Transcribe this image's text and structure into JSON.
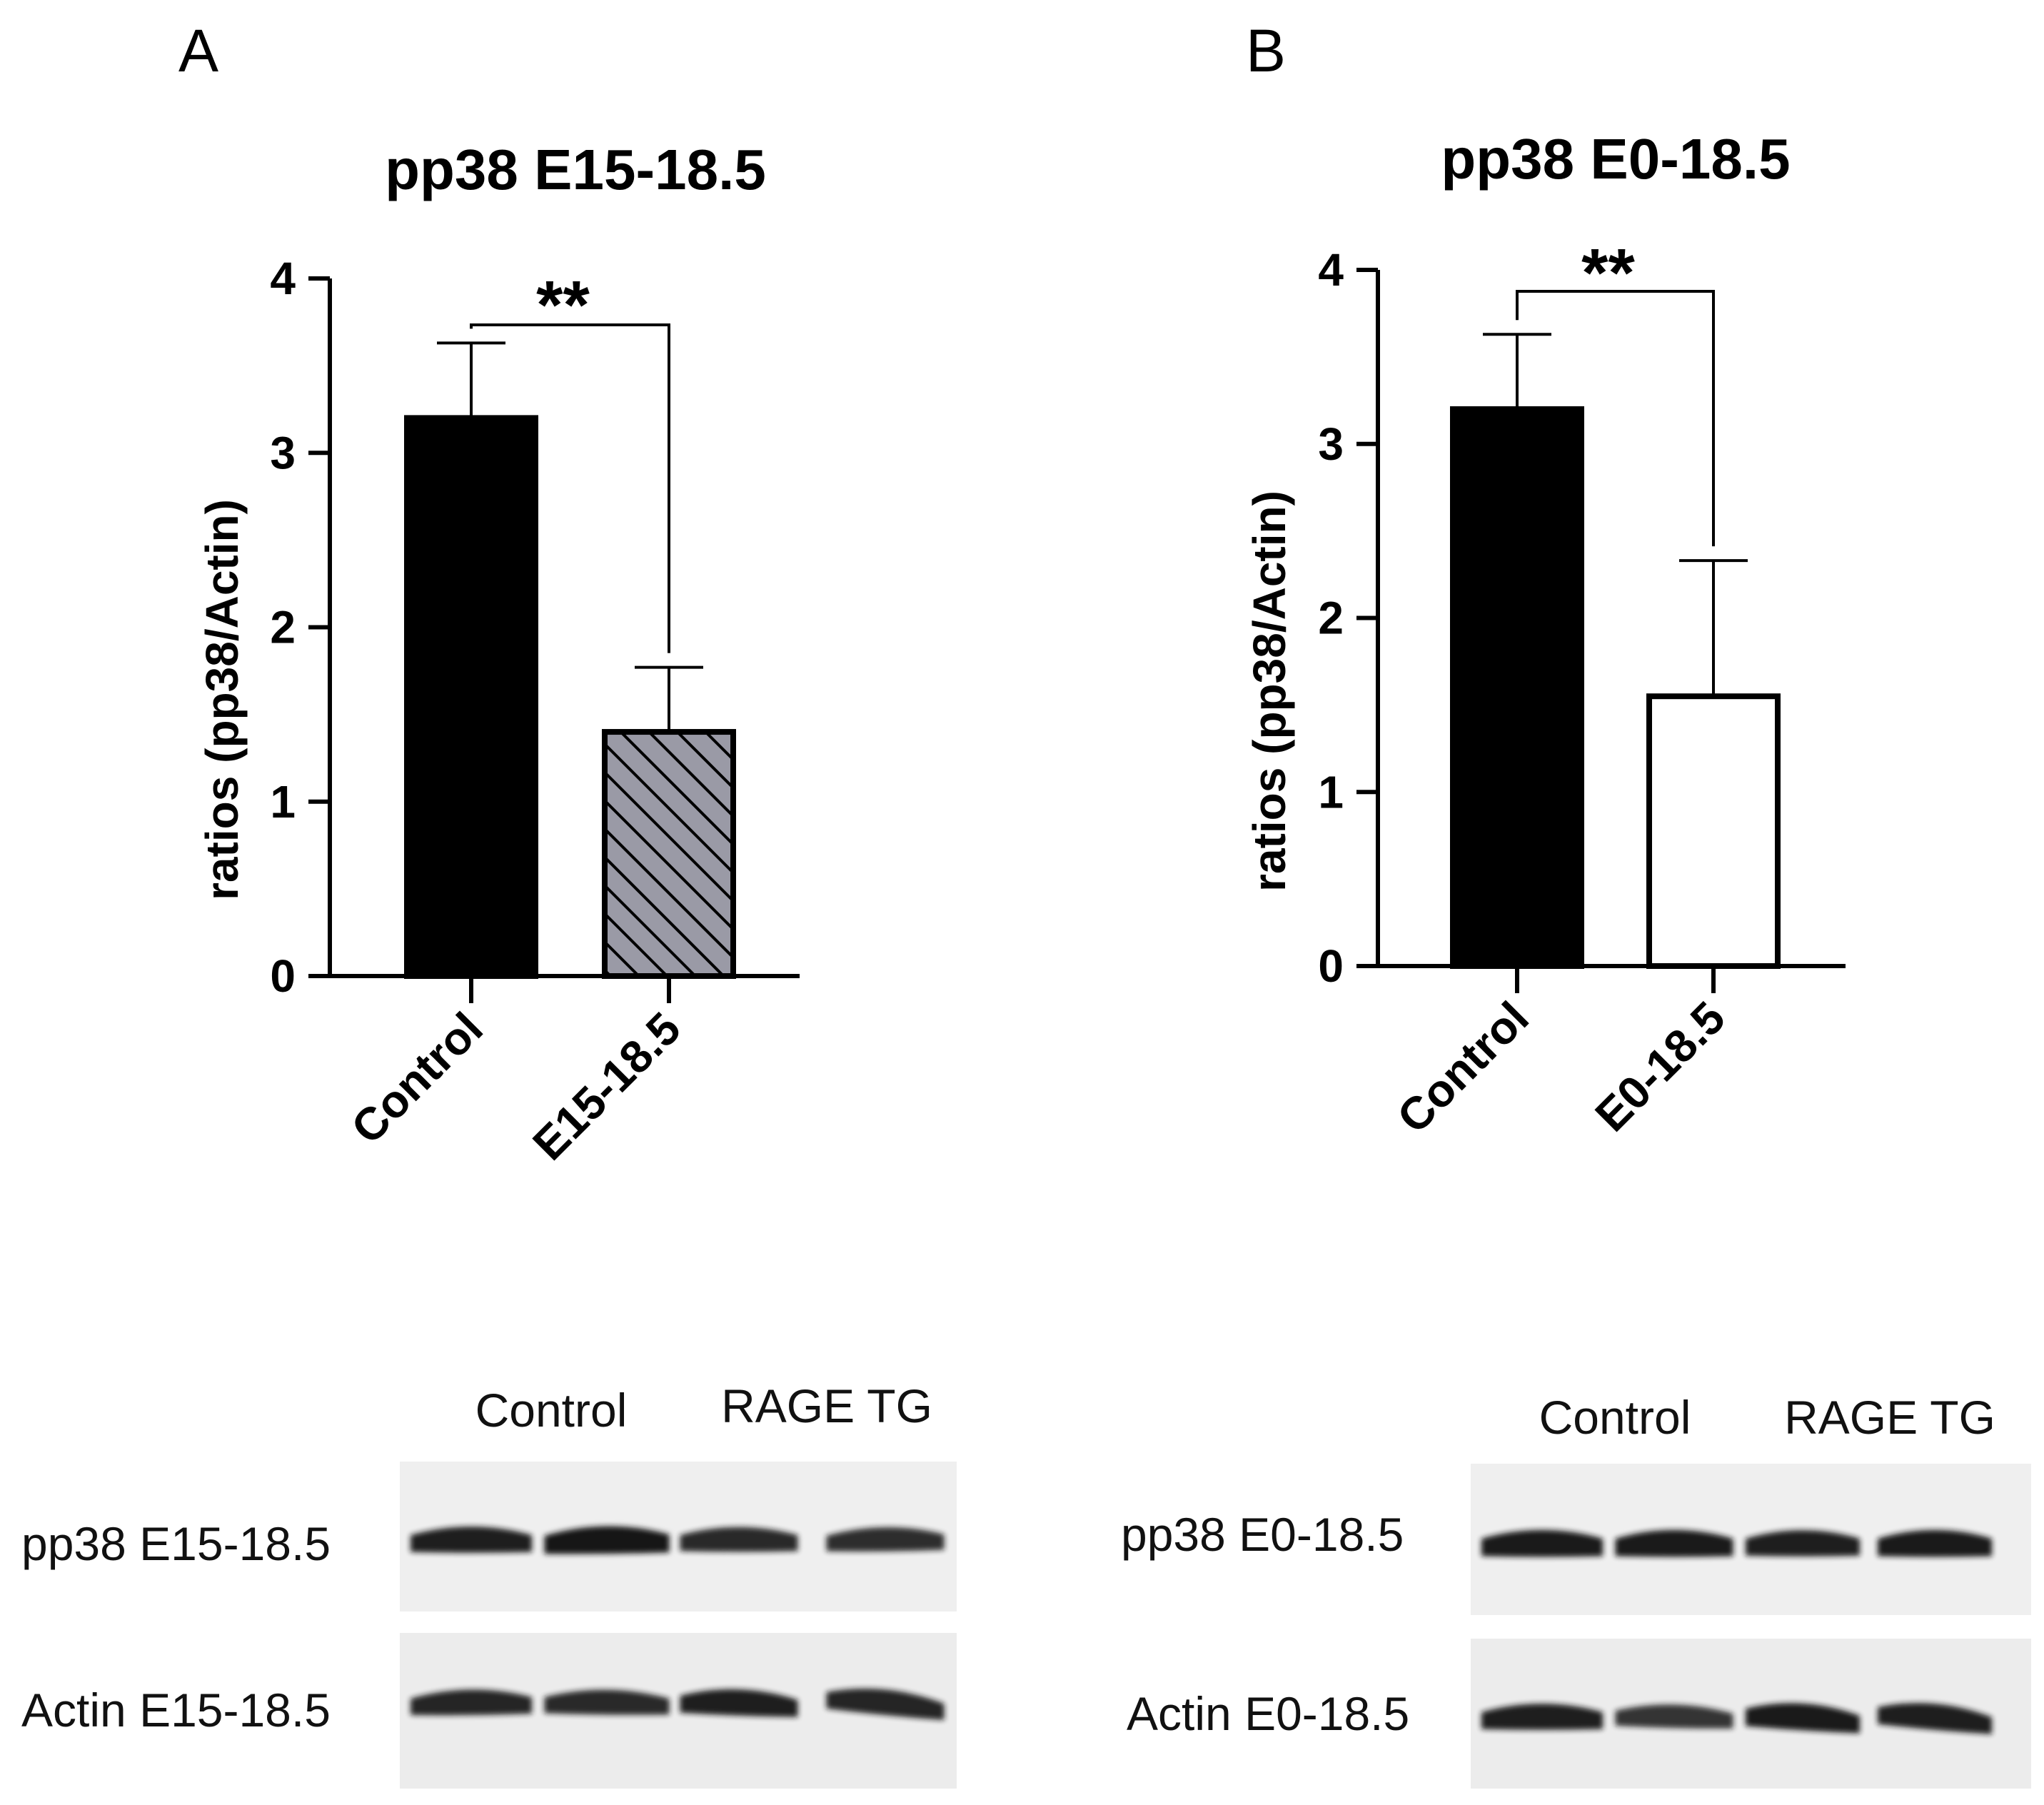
{
  "panels": [
    {
      "letter": "A",
      "chart_data": {
        "type": "bar",
        "title": "pp38 E15-18.5",
        "ylabel": "ratios (pp38/Actin)",
        "xlabel": "",
        "ylim": [
          0,
          4
        ],
        "yticks": [
          "0",
          "1",
          "2",
          "3",
          "4"
        ],
        "categories": [
          "Control",
          "E15-18.5"
        ],
        "values": [
          3.2,
          1.4
        ],
        "errors": [
          0.43,
          0.37
        ],
        "fills": [
          "solid-black",
          "hatched-gray"
        ],
        "significance": "**",
        "grid": false
      },
      "blot": {
        "group_labels": [
          "Control",
          "RAGE TG"
        ],
        "row_labels": [
          "pp38 E15-18.5",
          "Actin E15-18.5"
        ],
        "band_intensity": [
          [
            0.9,
            1.0,
            0.8,
            0.75
          ],
          [
            0.85,
            0.8,
            0.9,
            0.85
          ]
        ]
      }
    },
    {
      "letter": "B",
      "chart_data": {
        "type": "bar",
        "title": "pp38 E0-18.5",
        "ylabel": "ratios (pp38/Actin)",
        "xlabel": "",
        "ylim": [
          0,
          4
        ],
        "yticks": [
          "0",
          "1",
          "2",
          "3",
          "4"
        ],
        "categories": [
          "Control",
          "E0-18.5"
        ],
        "values": [
          3.2,
          1.55
        ],
        "errors": [
          0.43,
          0.78
        ],
        "fills": [
          "solid-black",
          "open-white"
        ],
        "significance": "**",
        "grid": false
      },
      "blot": {
        "group_labels": [
          "Control",
          "RAGE TG"
        ],
        "row_labels": [
          "pp38 E0-18.5",
          "Actin E0-18.5"
        ],
        "band_intensity": [
          [
            0.95,
            0.95,
            0.9,
            0.95
          ],
          [
            0.9,
            0.7,
            0.95,
            0.9
          ]
        ]
      }
    }
  ],
  "colors": {
    "bar_solid": "#000000",
    "bar_hatch_bg": "#9a9aa6",
    "blot_bg": "#efefef",
    "band": "#161616"
  }
}
